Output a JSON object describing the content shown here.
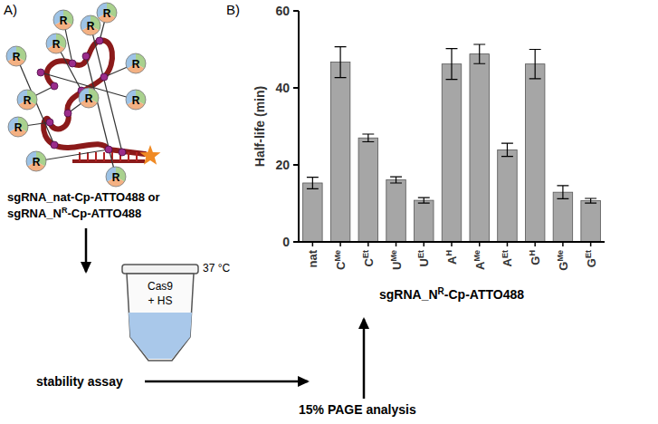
{
  "chart_data": {
    "type": "bar",
    "panel_label": "B)",
    "y_label": "Half-life (min)",
    "x_label": "sgRNA_NR-Cp-ATTO488",
    "categories": [
      "nat",
      "CMe",
      "CEt",
      "UMe",
      "UEt",
      "AH",
      "AMe",
      "AEt",
      "GH",
      "GMe",
      "GEt"
    ],
    "values": [
      15.3,
      46.7,
      27.0,
      16.1,
      10.8,
      46.2,
      48.8,
      23.9,
      46.2,
      12.9,
      10.7
    ],
    "errors": [
      1.5,
      4.0,
      1.0,
      0.8,
      0.7,
      4.0,
      2.5,
      1.7,
      3.8,
      1.7,
      0.6
    ],
    "color": "#a6a6a6",
    "ylim": [
      0,
      60
    ],
    "yticks": [
      0,
      20,
      40,
      60
    ]
  },
  "diagram": {
    "panel_label": "A)",
    "construct_label": "R",
    "construct_names": [
      "sgRNA_nat-Cp-ATTO488 or",
      "sgRNA_NR-Cp-ATTO488"
    ],
    "tube_labels": [
      "Cas9",
      "+ HS"
    ],
    "temperature": "37 °C",
    "steps": [
      "stability assay",
      "15% PAGE analysis"
    ]
  }
}
